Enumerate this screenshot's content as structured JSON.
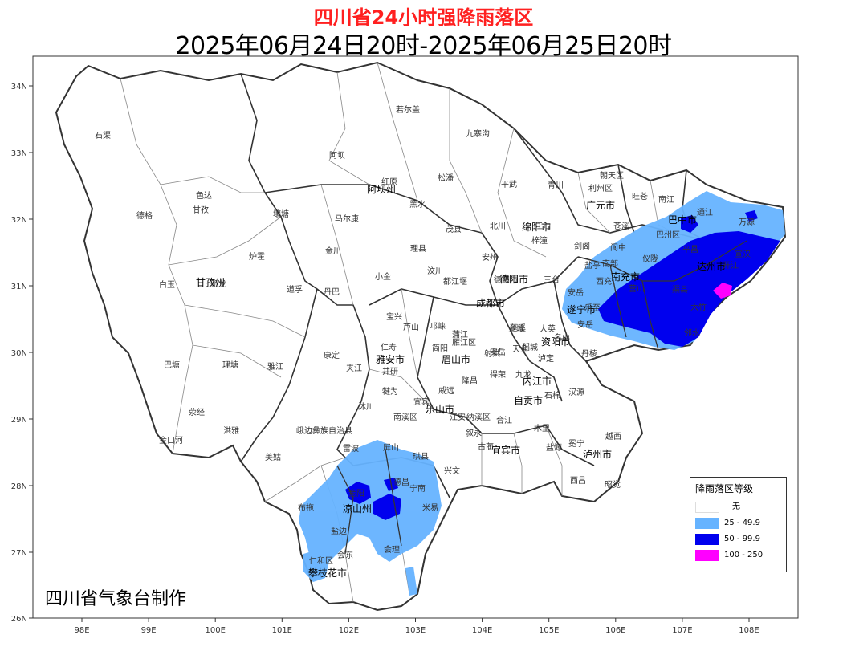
{
  "title": "四川省24小时强降雨落区",
  "subtitle": "2025年06月24日20时-2025年06月25日20时",
  "credit": "四川省气象台制作",
  "axes": {
    "lat": [
      "34N",
      "33N",
      "32N",
      "31N",
      "30N",
      "29N",
      "28N",
      "27N",
      "26N"
    ],
    "lon": [
      "98E",
      "99E",
      "100E",
      "101E",
      "102E",
      "103E",
      "104E",
      "105E",
      "106E",
      "107E",
      "108E"
    ]
  },
  "legend": {
    "title": "降雨落区等级",
    "items": [
      {
        "label": "无",
        "color": "#ffffff"
      },
      {
        "label": "25 - 49.9",
        "color": "#66b3ff"
      },
      {
        "label": "50 - 99.9",
        "color": "#0000ee"
      },
      {
        "label": "100 - 250",
        "color": "#ff00ff"
      }
    ]
  },
  "prefectures": [
    "阿坝州",
    "甘孜州",
    "凉山州",
    "攀枝花市",
    "雅安市",
    "成都市",
    "德阳市",
    "绵阳市",
    "广元市",
    "巴中市",
    "达州市",
    "南充市",
    "遂宁市",
    "资阳市",
    "眉山市",
    "乐山市",
    "内江市",
    "自贡市",
    "宜宾市",
    "泸州市"
  ],
  "counties": [
    "石渠",
    "若尔盖",
    "九寨沟",
    "阿坝",
    "红原",
    "松潘",
    "平武",
    "青川",
    "朝天区",
    "利州区",
    "旺苍",
    "南江",
    "通江",
    "万源",
    "德格",
    "色达",
    "甘孜",
    "壤塘",
    "马尔康",
    "黑水",
    "茂县",
    "北川",
    "江油",
    "剑阁",
    "苍溪",
    "巴州区",
    "宣汉",
    "炉霍",
    "金川",
    "理县",
    "汶川",
    "安州",
    "梓潼",
    "阆中",
    "南部",
    "仪陇",
    "平昌",
    "渠县",
    "开江",
    "新龙",
    "白玉",
    "道孚",
    "丹巴",
    "小金",
    "都江堰",
    "德阳市",
    "三台",
    "盐亭",
    "西充",
    "营山",
    "大竹",
    "邻水",
    "巴塘",
    "理塘",
    "雅江",
    "康定",
    "宝兴",
    "芦山",
    "邛崃",
    "蒲江",
    "射洪",
    "蓬溪",
    "大英",
    "安岳",
    "乐至",
    "安岳",
    "天全",
    "名山",
    "丹棱",
    "仁寿",
    "简阳",
    "雁江区",
    "安岳",
    "乡城",
    "稻城",
    "泸定",
    "荥经",
    "洪雅",
    "夹江",
    "井研",
    "威远",
    "隆昌",
    "得荣",
    "九龙",
    "石棉",
    "汉源",
    "金口河",
    "峨边彝族自治县",
    "沐川",
    "犍为",
    "宜宾",
    "南溪区",
    "江安",
    "纳溪区",
    "合江",
    "木里",
    "冕宁",
    "越西",
    "美姑",
    "雷波",
    "屏山",
    "珙县",
    "兴文",
    "叙永",
    "古蔺",
    "盐源",
    "西昌",
    "昭觉",
    "布拖",
    "金阳",
    "德昌",
    "宁南",
    "米易",
    "盐边",
    "会理",
    "会东",
    "仁和区"
  ]
}
